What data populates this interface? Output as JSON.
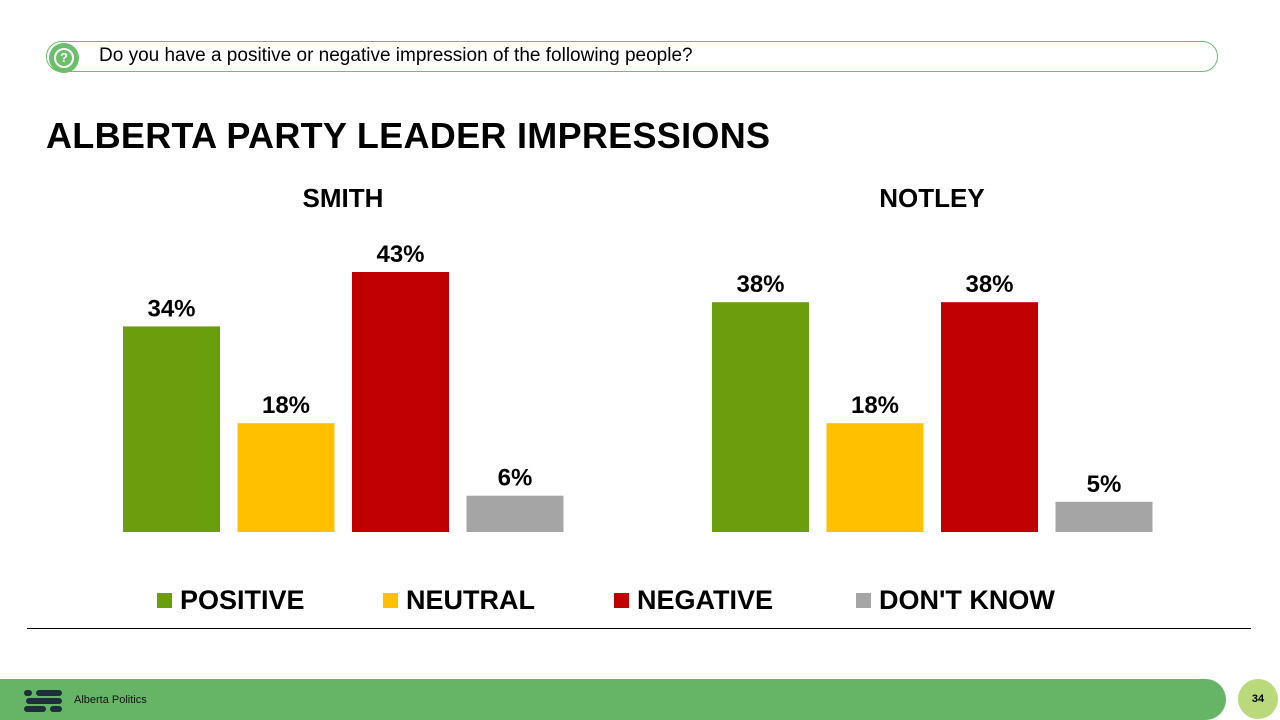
{
  "question": {
    "icon": "question-mark-icon",
    "text": "Do you have a positive or negative impression of the following people?"
  },
  "title": "ALBERTA PARTY LEADER IMPRESSIONS",
  "colors": {
    "accent": "#6BBF6A",
    "positive": "#6B9E0C",
    "neutral": "#FFC000",
    "negative": "#C00000",
    "dont_know": "#A5A5A5",
    "footer": "#66B567",
    "page_badge": "#B9D97A"
  },
  "chart_data": [
    {
      "type": "bar",
      "title": "SMITH",
      "categories": [
        "POSITIVE",
        "NEUTRAL",
        "NEGATIVE",
        "DON'T KNOW"
      ],
      "values": [
        34,
        18,
        43,
        6
      ],
      "labels": [
        "34%",
        "18%",
        "43%",
        "6%"
      ],
      "ylim": [
        0,
        43
      ],
      "grid": false,
      "legend": "bottom"
    },
    {
      "type": "bar",
      "title": "NOTLEY",
      "categories": [
        "POSITIVE",
        "NEUTRAL",
        "NEGATIVE",
        "DON'T KNOW"
      ],
      "values": [
        38,
        18,
        38,
        5
      ],
      "labels": [
        "38%",
        "18%",
        "38%",
        "5%"
      ],
      "ylim": [
        0,
        43
      ],
      "grid": false,
      "legend": "bottom"
    }
  ],
  "legend": [
    {
      "label": "POSITIVE",
      "color": "#6B9E0C"
    },
    {
      "label": "NEUTRAL",
      "color": "#FFC000"
    },
    {
      "label": "NEGATIVE",
      "color": "#C00000"
    },
    {
      "label": "DON'T KNOW",
      "color": "#A5A5A5"
    }
  ],
  "footer": {
    "logo_icon": "alberta-politics-logo-icon",
    "brand": "Alberta Politics",
    "page_number": "34"
  }
}
